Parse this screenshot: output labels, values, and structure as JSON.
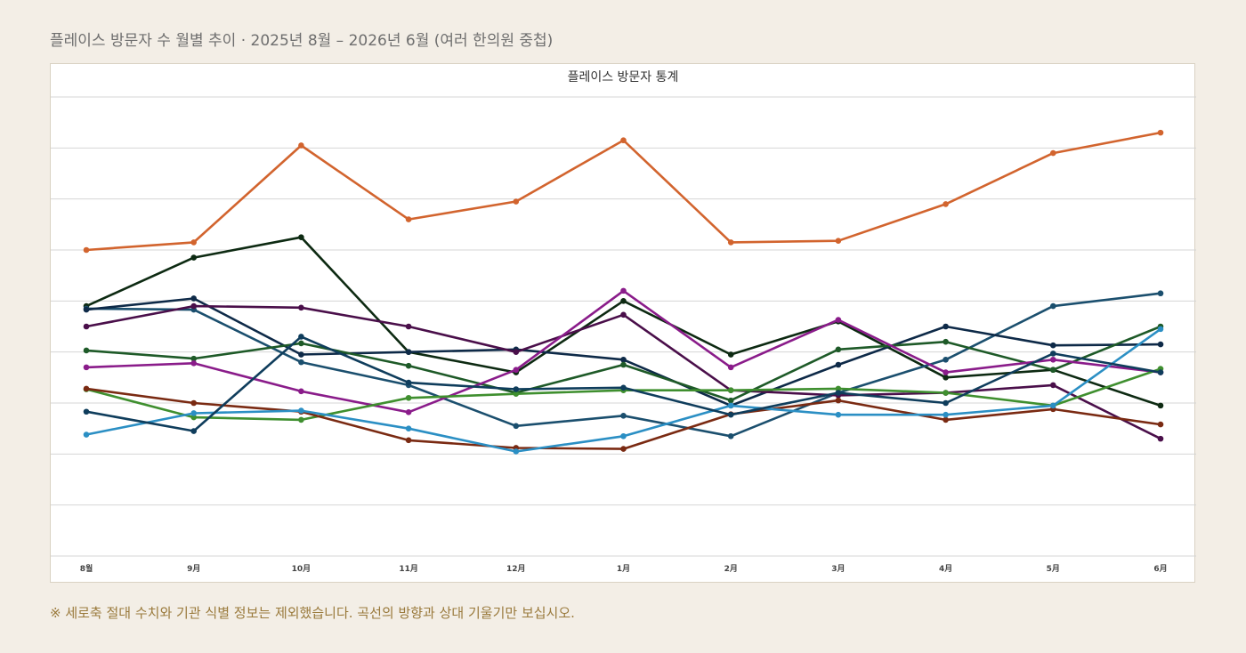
{
  "page": {
    "heading": "플레이스 방문자 수 월별 추이  ·  2025년 8월 – 2026년 6월  (여러 한의원 중첩)",
    "footnote": "※ 세로축 절대 수치와 기관 식별 정보는 제외했습니다. 곡선의 방향과 상대 기울기만 보십시오."
  },
  "chart_data": {
    "type": "line",
    "title": "플레이스 방문자 통계",
    "xlabel": "",
    "ylabel": "",
    "categories": [
      "8월",
      "9月",
      "10月",
      "11月",
      "12月",
      "1月",
      "2月",
      "3月",
      "4月",
      "5月",
      "6月"
    ],
    "ylim": [
      0,
      9
    ],
    "y_gridlines": 9,
    "y_tick_labels_shown": false,
    "grid": true,
    "legend": "none",
    "series": [
      {
        "color": "#d2642e",
        "values": [
          6.0,
          6.15,
          8.05,
          6.6,
          6.95,
          8.15,
          6.15,
          6.18,
          6.9,
          7.9,
          8.3
        ]
      },
      {
        "color": "#0d2a12",
        "values": [
          4.9,
          5.85,
          6.25,
          4.0,
          3.6,
          5.0,
          3.95,
          4.6,
          3.5,
          3.65,
          2.95
        ]
      },
      {
        "color": "#1b4f6e",
        "values": [
          4.85,
          4.83,
          3.8,
          3.35,
          2.55,
          2.75,
          2.35,
          3.2,
          3.85,
          4.9,
          5.15
        ]
      },
      {
        "color": "#0e2a48",
        "values": [
          4.83,
          5.05,
          3.95,
          4.0,
          4.05,
          3.85,
          2.95,
          3.75,
          4.5,
          4.13,
          4.15
        ]
      },
      {
        "color": "#4a0f4a",
        "values": [
          4.5,
          4.9,
          4.87,
          4.5,
          4.0,
          4.73,
          3.25,
          3.15,
          3.2,
          3.35,
          2.3
        ]
      },
      {
        "color": "#1e5a28",
        "values": [
          4.03,
          3.87,
          4.17,
          3.73,
          3.2,
          3.75,
          3.05,
          4.05,
          4.2,
          3.65,
          4.5
        ]
      },
      {
        "color": "#8a1c8a",
        "values": [
          3.7,
          3.78,
          3.23,
          2.82,
          3.65,
          5.2,
          3.7,
          4.63,
          3.6,
          3.85,
          3.6
        ]
      },
      {
        "color": "#3f8f2f",
        "values": [
          3.27,
          2.72,
          2.67,
          3.1,
          3.18,
          3.25,
          3.25,
          3.28,
          3.2,
          2.95,
          3.67
        ]
      },
      {
        "color": "#7a2a12",
        "values": [
          3.28,
          3.0,
          2.83,
          2.27,
          2.12,
          2.1,
          2.78,
          3.05,
          2.67,
          2.88,
          2.58
        ]
      },
      {
        "color": "#2b8fc4",
        "values": [
          2.38,
          2.8,
          2.85,
          2.5,
          2.05,
          2.35,
          2.95,
          2.77,
          2.77,
          2.95,
          4.45
        ]
      },
      {
        "color": "#0f3d5c",
        "values": [
          2.83,
          2.45,
          4.3,
          3.4,
          3.27,
          3.3,
          2.77,
          3.2,
          3.0,
          3.97,
          3.6
        ]
      }
    ]
  }
}
